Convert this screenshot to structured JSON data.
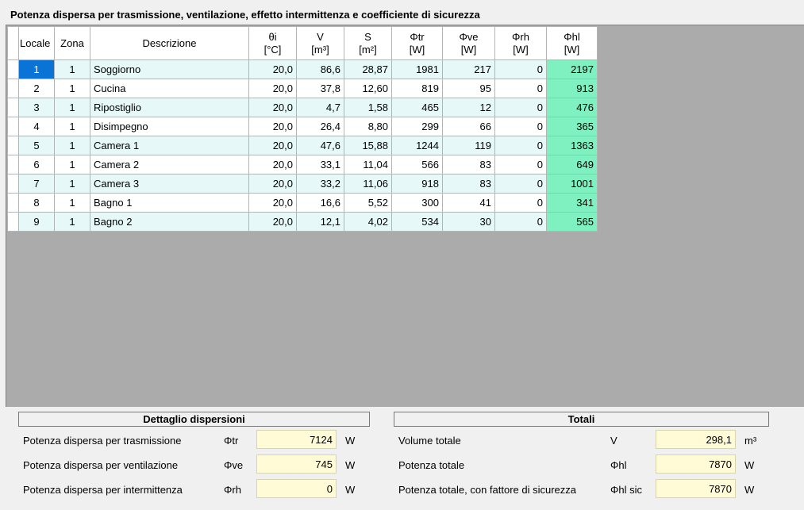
{
  "title": "Potenza dispersa per trasmissione, ventilazione, effetto intermittenza e coefficiente di sicurezza",
  "grid": {
    "headers": {
      "locale": "Locale",
      "zona": "Zona",
      "descrizione": "Descrizione",
      "theta": {
        "name": "θi",
        "unit": "[°C]"
      },
      "v": {
        "name": "V",
        "unit": "[m³]"
      },
      "s": {
        "name": "S",
        "unit": "[m²]"
      },
      "phitr": {
        "name": "Φtr",
        "unit": "[W]"
      },
      "phive": {
        "name": "Φve",
        "unit": "[W]"
      },
      "phirh": {
        "name": "Φrh",
        "unit": "[W]"
      },
      "phihl": {
        "name": "Φhl",
        "unit": "[W]"
      }
    },
    "rows": [
      {
        "locale": "1",
        "zona": "1",
        "descrizione": "Soggiorno",
        "theta": "20,0",
        "v": "86,6",
        "s": "28,87",
        "phitr": "1981",
        "phive": "217",
        "phirh": "0",
        "phihl": "2197"
      },
      {
        "locale": "2",
        "zona": "1",
        "descrizione": "Cucina",
        "theta": "20,0",
        "v": "37,8",
        "s": "12,60",
        "phitr": "819",
        "phive": "95",
        "phirh": "0",
        "phihl": "913"
      },
      {
        "locale": "3",
        "zona": "1",
        "descrizione": "Ripostiglio",
        "theta": "20,0",
        "v": "4,7",
        "s": "1,58",
        "phitr": "465",
        "phive": "12",
        "phirh": "0",
        "phihl": "476"
      },
      {
        "locale": "4",
        "zona": "1",
        "descrizione": "Disimpegno",
        "theta": "20,0",
        "v": "26,4",
        "s": "8,80",
        "phitr": "299",
        "phive": "66",
        "phirh": "0",
        "phihl": "365"
      },
      {
        "locale": "5",
        "zona": "1",
        "descrizione": "Camera 1",
        "theta": "20,0",
        "v": "47,6",
        "s": "15,88",
        "phitr": "1244",
        "phive": "119",
        "phirh": "0",
        "phihl": "1363"
      },
      {
        "locale": "6",
        "zona": "1",
        "descrizione": "Camera 2",
        "theta": "20,0",
        "v": "33,1",
        "s": "11,04",
        "phitr": "566",
        "phive": "83",
        "phirh": "0",
        "phihl": "649"
      },
      {
        "locale": "7",
        "zona": "1",
        "descrizione": "Camera 3",
        "theta": "20,0",
        "v": "33,2",
        "s": "11,06",
        "phitr": "918",
        "phive": "83",
        "phirh": "0",
        "phihl": "1001"
      },
      {
        "locale": "8",
        "zona": "1",
        "descrizione": "Bagno 1",
        "theta": "20,0",
        "v": "16,6",
        "s": "5,52",
        "phitr": "300",
        "phive": "41",
        "phirh": "0",
        "phihl": "341"
      },
      {
        "locale": "9",
        "zona": "1",
        "descrizione": "Bagno 2",
        "theta": "20,0",
        "v": "12,1",
        "s": "4,02",
        "phitr": "534",
        "phive": "30",
        "phirh": "0",
        "phihl": "565"
      }
    ]
  },
  "dettaglio": {
    "title": "Dettaglio dispersioni",
    "trasmissione": {
      "label": "Potenza dispersa per trasmissione",
      "symbol": "Φtr",
      "value": "7124",
      "unit": "W"
    },
    "ventilazione": {
      "label": "Potenza dispersa per ventilazione",
      "symbol": "Φve",
      "value": "745",
      "unit": "W"
    },
    "intermittenza": {
      "label": "Potenza dispersa per intermittenza",
      "symbol": "Φrh",
      "value": "0",
      "unit": "W"
    }
  },
  "totali": {
    "title": "Totali",
    "volume": {
      "label": "Volume totale",
      "symbol": "V",
      "value": "298,1",
      "unit": "m³"
    },
    "potenza": {
      "label": "Potenza totale",
      "symbol": "Φhl",
      "value": "7870",
      "unit": "W"
    },
    "potenza_sic": {
      "label": "Potenza totale, con fattore di sicurezza",
      "symbol": "Φhl sic",
      "value": "7870",
      "unit": "W"
    }
  },
  "colors": {
    "row_alt": "#e6f8f8",
    "hl_column": "#7ff0c0",
    "selection": "#0a74d6",
    "value_box": "#fffbd6",
    "grid_background": "#ababab"
  }
}
